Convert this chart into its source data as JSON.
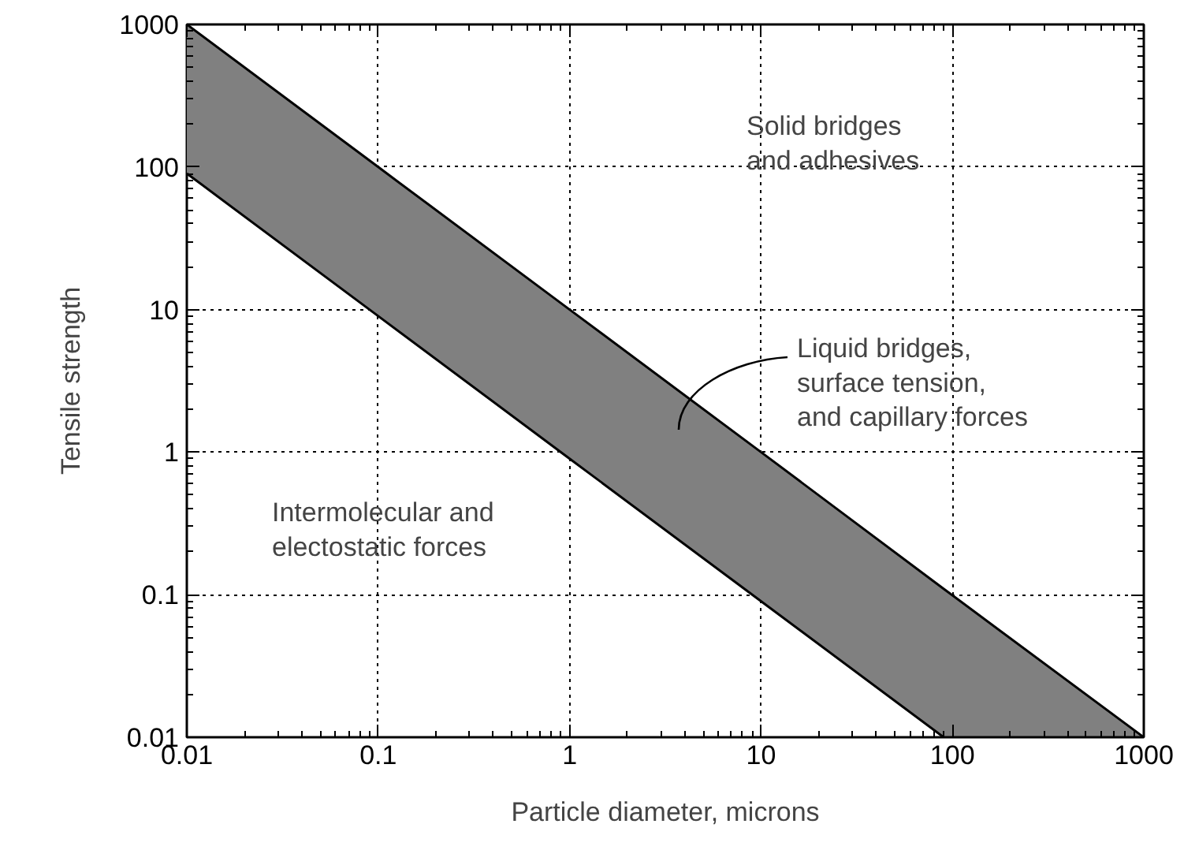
{
  "chart_data": {
    "type": "area",
    "xlabel": "Particle diameter, microns",
    "ylabel": "Tensile strength",
    "x": [
      0.01,
      0.1,
      1,
      10,
      90,
      1000
    ],
    "series": [
      {
        "color": "#808080",
        "values": [
          1000,
          100,
          10,
          1,
          0.11,
          0.01
        ]
      },
      {
        "type": "line",
        "color": "#000000",
        "values": [
          90,
          9,
          0.9,
          0.09,
          0.01,
          0.01
        ]
      }
    ],
    "log": "xy",
    "xlim": [
      0.01,
      1000
    ],
    "ylim": [
      0.01,
      1000
    ],
    "xticks": [
      0.01,
      0.1,
      1,
      10,
      100,
      1000
    ],
    "yticks": [
      0.01,
      0.1,
      1,
      10,
      100,
      1000
    ],
    "grid": true,
    "line_style": "solid",
    "annotations": [
      "Solid bridges\nand adhesives",
      "Intermolecular and\nelectostatic forces",
      "Liquid bridges,\nsurface tension,\nand capillary forces"
    ]
  }
}
